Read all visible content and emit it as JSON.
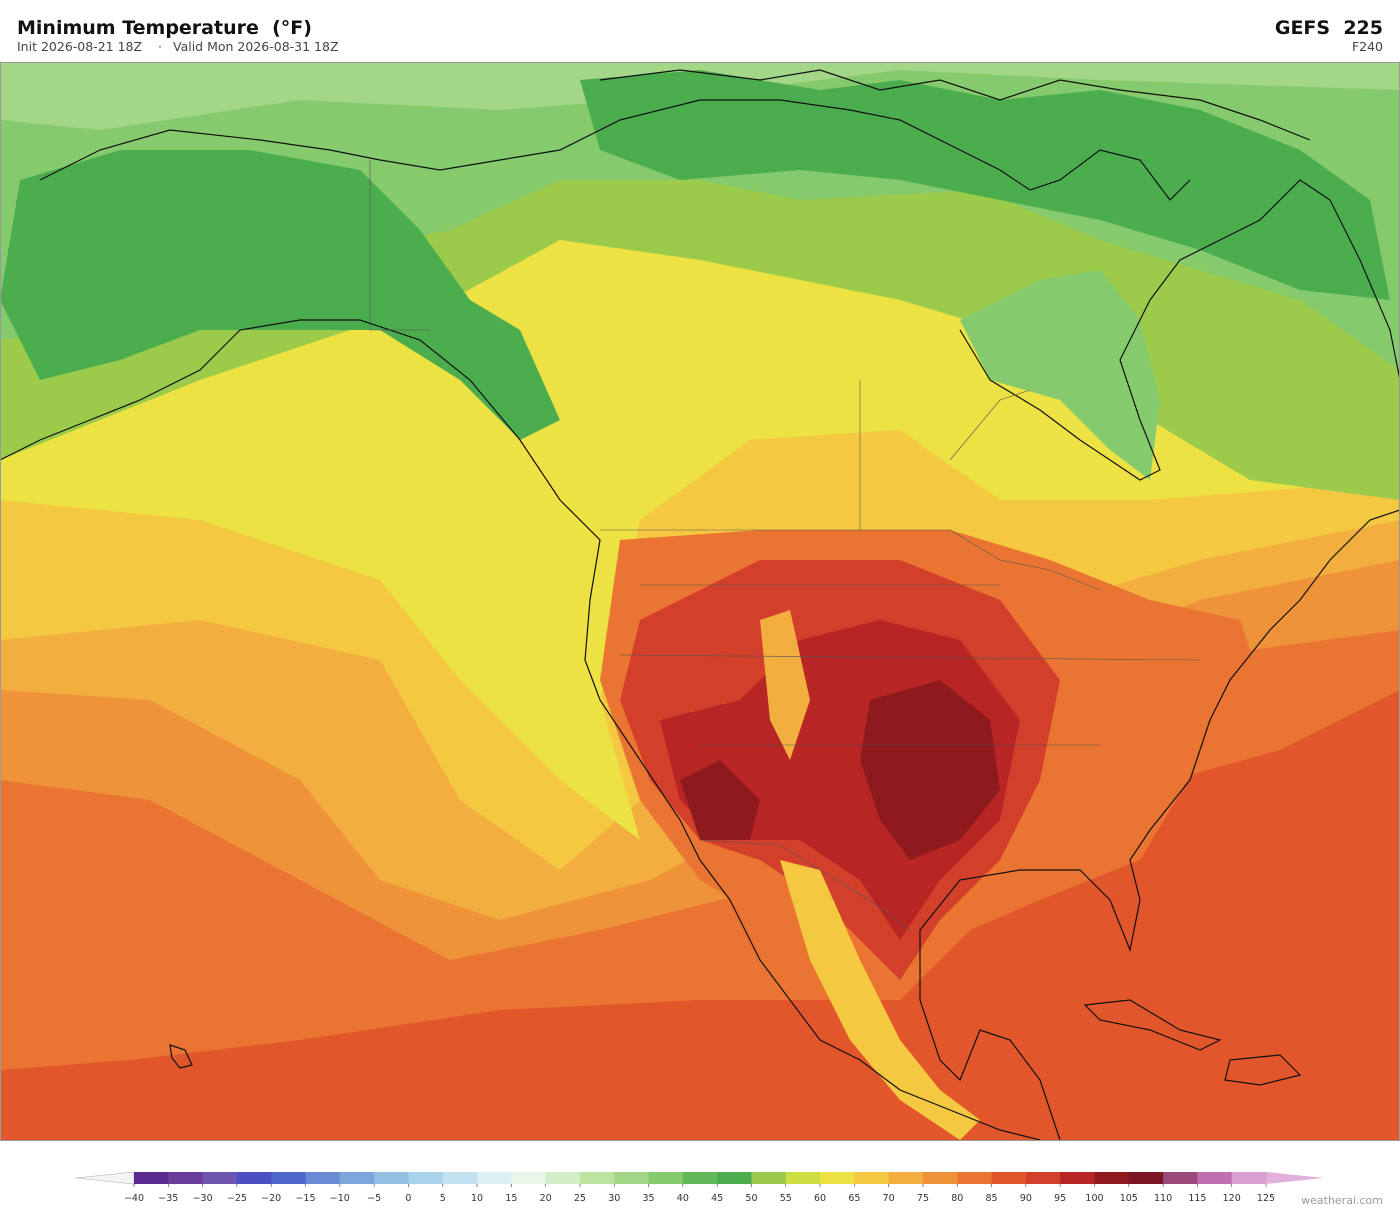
{
  "header": {
    "title": "Minimum Temperature  (°F)",
    "init": "Init 2026-08-21 18Z",
    "separator": "·",
    "valid": "Valid Mon 2026-08-31 18Z",
    "model": "GEFS  225",
    "forecast_hour": "F240"
  },
  "colorbar": {
    "ticks": [
      {
        "value": -40,
        "label": "−40"
      },
      {
        "value": -35,
        "label": "−35"
      },
      {
        "value": -30,
        "label": "−30"
      },
      {
        "value": -25,
        "label": "−25"
      },
      {
        "value": -20,
        "label": "−20"
      },
      {
        "value": -15,
        "label": "−15"
      },
      {
        "value": -10,
        "label": "−10"
      },
      {
        "value": -5,
        "label": "−5"
      },
      0,
      5,
      10,
      15,
      20,
      25,
      30,
      35,
      40,
      45,
      50,
      55,
      60,
      65,
      70,
      75,
      80,
      85,
      90,
      95,
      100,
      105,
      110,
      115,
      120,
      125
    ],
    "colors": [
      "#5b2a8e",
      "#6a3d9a",
      "#6f55b0",
      "#4b4fc0",
      "#4d67cc",
      "#6a8bd4",
      "#7ea4dc",
      "#94bfe5",
      "#a9d3ec",
      "#c2e2ef",
      "#dceff2",
      "#e8f5e8",
      "#d3edc6",
      "#bde3a0",
      "#a3d687",
      "#86ca6e",
      "#62b85a",
      "#4cad4f",
      "#9ccb4c",
      "#cfdd45",
      "#ede244",
      "#f5c842",
      "#f2ae3e",
      "#ee933a",
      "#ea7532",
      "#e2562c",
      "#d23f2a",
      "#b82525",
      "#8e1a1e",
      "#7a1626",
      "#9c4a7c",
      "#c070b0",
      "#d8a0d0"
    ],
    "under_color": "#f4f4f4",
    "over_color": "#e2b0dc"
  },
  "watermark": "weatherai.com"
}
